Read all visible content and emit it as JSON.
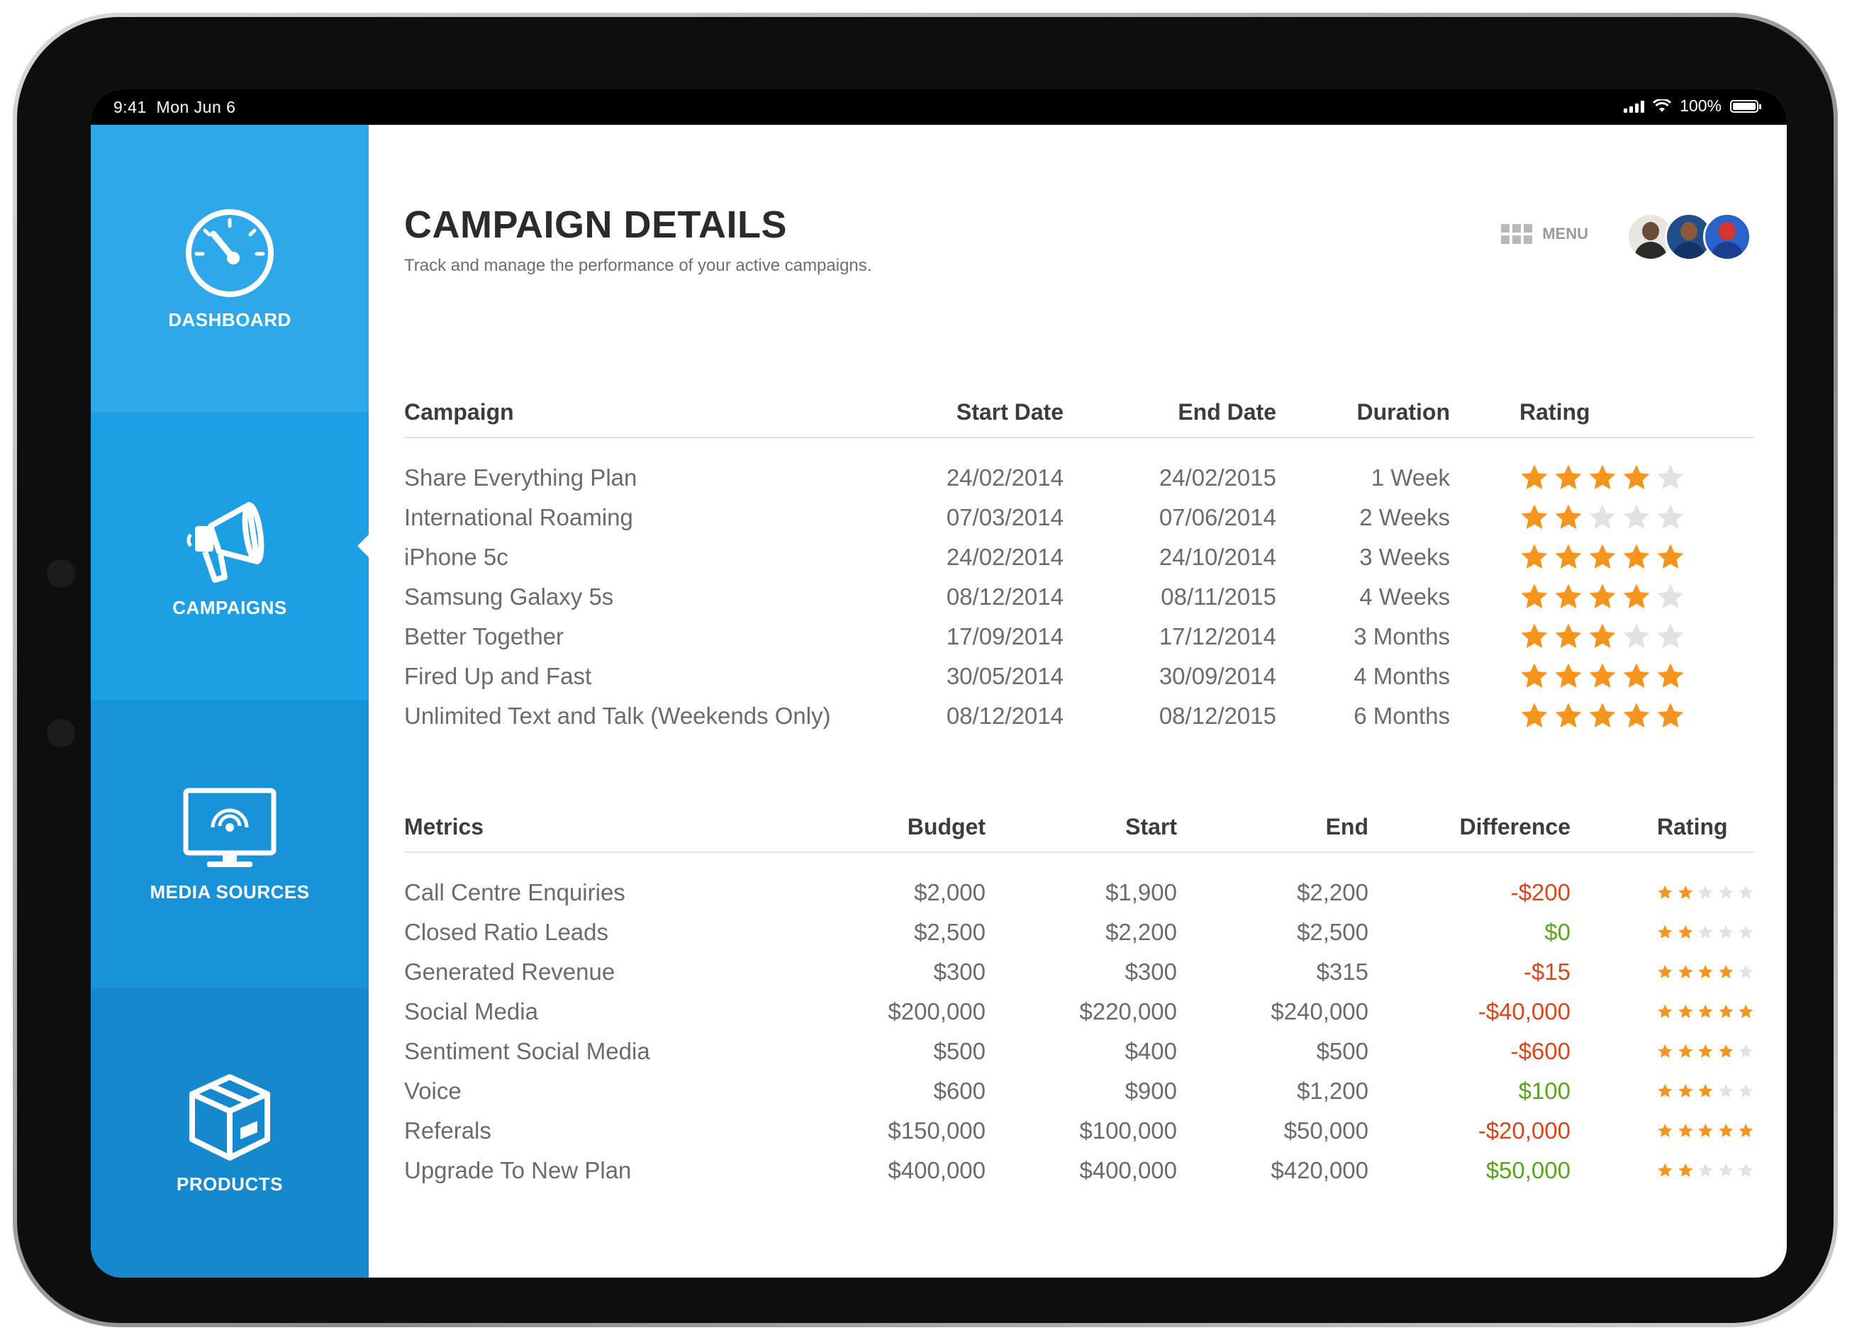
{
  "status": {
    "time": "9:41",
    "date": "Mon Jun 6",
    "battery": "100%"
  },
  "sidebar": {
    "items": [
      {
        "label": "DASHBOARD",
        "icon": "speedometer-icon"
      },
      {
        "label": "CAMPAIGNS",
        "icon": "megaphone-icon",
        "active": true
      },
      {
        "label": "MEDIA SOURCES",
        "icon": "monitor-broadcast-icon"
      },
      {
        "label": "PRODUCTS",
        "icon": "box-icon"
      }
    ]
  },
  "header": {
    "title": "CAMPAIGN DETAILS",
    "subtitle": "Track and manage the performance of your active campaigns.",
    "menu_label": "MENU"
  },
  "colors": {
    "negative": "#d9481a",
    "positive": "#58a61c",
    "star_on": "#f7941d",
    "star_off": "#e2e2e2"
  },
  "campaigns": {
    "headers": [
      "Campaign",
      "Start Date",
      "End Date",
      "Duration",
      "Rating"
    ],
    "rows": [
      {
        "name": "Share Everything Plan",
        "start": "24/02/2014",
        "end": "24/02/2015",
        "duration": "1 Week",
        "rating": 4
      },
      {
        "name": "International Roaming",
        "start": "07/03/2014",
        "end": "07/06/2014",
        "duration": "2 Weeks",
        "rating": 2
      },
      {
        "name": "iPhone 5c",
        "start": "24/02/2014",
        "end": "24/10/2014",
        "duration": "3 Weeks",
        "rating": 5
      },
      {
        "name": "Samsung Galaxy 5s",
        "start": "08/12/2014",
        "end": "08/11/2015",
        "duration": "4 Weeks",
        "rating": 4
      },
      {
        "name": "Better Together",
        "start": "17/09/2014",
        "end": "17/12/2014",
        "duration": "3 Months",
        "rating": 3
      },
      {
        "name": "Fired Up and Fast",
        "start": "30/05/2014",
        "end": "30/09/2014",
        "duration": "4 Months",
        "rating": 5
      },
      {
        "name": "Unlimited Text and Talk (Weekends Only)",
        "start": "08/12/2014",
        "end": "08/12/2015",
        "duration": "6 Months",
        "rating": 5
      }
    ]
  },
  "metrics": {
    "headers": [
      "Metrics",
      "Budget",
      "Start",
      "End",
      "Difference",
      "Rating"
    ],
    "rows": [
      {
        "name": "Call Centre Enquiries",
        "budget": "$2,000",
        "start": "$1,900",
        "end": "$2,200",
        "difference": "-$200",
        "trend": "neg",
        "rating": 2
      },
      {
        "name": "Closed Ratio Leads",
        "budget": "$2,500",
        "start": "$2,200",
        "end": "$2,500",
        "difference": "$0",
        "trend": "pos",
        "rating": 2
      },
      {
        "name": "Generated Revenue",
        "budget": "$300",
        "start": "$300",
        "end": "$315",
        "difference": "-$15",
        "trend": "neg",
        "rating": 4
      },
      {
        "name": "Social Media",
        "budget": "$200,000",
        "start": "$220,000",
        "end": "$240,000",
        "difference": "-$40,000",
        "trend": "neg",
        "rating": 5
      },
      {
        "name": "Sentiment Social Media",
        "budget": "$500",
        "start": "$400",
        "end": "$500",
        "difference": "-$600",
        "trend": "neg",
        "rating": 4
      },
      {
        "name": "Voice",
        "budget": "$600",
        "start": "$900",
        "end": "$1,200",
        "difference": "$100",
        "trend": "pos",
        "rating": 3
      },
      {
        "name": "Referals",
        "budget": "$150,000",
        "start": "$100,000",
        "end": "$50,000",
        "difference": "-$20,000",
        "trend": "neg",
        "rating": 5
      },
      {
        "name": "Upgrade To New Plan",
        "budget": "$400,000",
        "start": "$400,000",
        "end": "$420,000",
        "difference": "$50,000",
        "trend": "pos",
        "rating": 2
      }
    ]
  }
}
